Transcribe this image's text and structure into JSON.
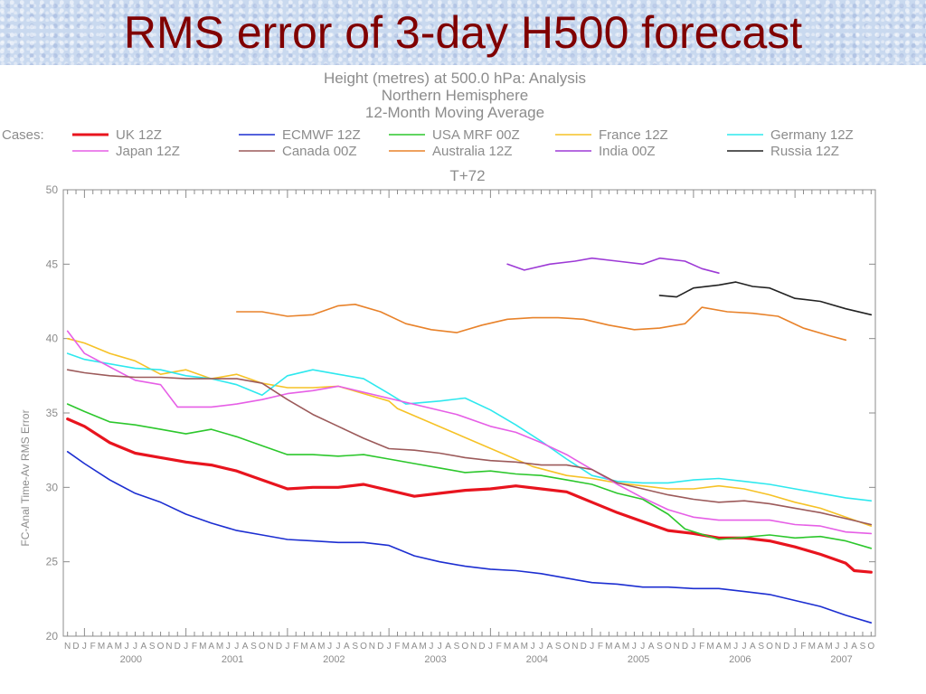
{
  "slide": {
    "title": "RMS error of 3-day H500 forecast"
  },
  "chart_data": {
    "type": "line",
    "header_lines": [
      "Height (metres) at 500.0 hPa:  Analysis",
      "Northern Hemisphere",
      "12-Month Moving Average"
    ],
    "cases_label": "Cases:",
    "subtitle": "T+72",
    "ylabel": "FC-Anal Time-Av RMS Error",
    "xlabel": "",
    "ylim": [
      20,
      50
    ],
    "yticks": [
      20,
      25,
      30,
      35,
      40,
      45,
      50
    ],
    "xlim": [
      "1999-11",
      "2007-10"
    ],
    "month_letters": "JFMAMJJASOND",
    "years": [
      "2000",
      "2001",
      "2002",
      "2003",
      "2004",
      "2005",
      "2006",
      "2007"
    ],
    "grid": false,
    "legend_position": "top",
    "series": [
      {
        "name": "UK 12Z",
        "color": "#e8141e",
        "width": 3.2,
        "points": [
          [
            "1999-11",
            34.6
          ],
          [
            "2000-01",
            34.1
          ],
          [
            "2000-04",
            33.0
          ],
          [
            "2000-07",
            32.3
          ],
          [
            "2000-10",
            32.0
          ],
          [
            "2001-01",
            31.7
          ],
          [
            "2001-04",
            31.5
          ],
          [
            "2001-07",
            31.1
          ],
          [
            "2001-10",
            30.5
          ],
          [
            "2002-01",
            29.9
          ],
          [
            "2002-04",
            30.0
          ],
          [
            "2002-07",
            30.0
          ],
          [
            "2002-10",
            30.2
          ],
          [
            "2003-01",
            29.8
          ],
          [
            "2003-04",
            29.4
          ],
          [
            "2003-07",
            29.6
          ],
          [
            "2003-10",
            29.8
          ],
          [
            "2004-01",
            29.9
          ],
          [
            "2004-04",
            30.1
          ],
          [
            "2004-07",
            29.9
          ],
          [
            "2004-10",
            29.7
          ],
          [
            "2005-01",
            29.0
          ],
          [
            "2005-04",
            28.3
          ],
          [
            "2005-07",
            27.7
          ],
          [
            "2005-10",
            27.1
          ],
          [
            "2006-01",
            26.9
          ],
          [
            "2006-04",
            26.6
          ],
          [
            "2006-07",
            26.6
          ],
          [
            "2006-10",
            26.4
          ],
          [
            "2007-01",
            26.0
          ],
          [
            "2007-04",
            25.5
          ],
          [
            "2007-07",
            24.9
          ],
          [
            "2007-08",
            24.4
          ],
          [
            "2007-10",
            24.3
          ]
        ]
      },
      {
        "name": "ECMWF 12Z",
        "color": "#1c2ed1",
        "width": 1.6,
        "points": [
          [
            "1999-11",
            32.4
          ],
          [
            "2000-01",
            31.6
          ],
          [
            "2000-04",
            30.5
          ],
          [
            "2000-07",
            29.6
          ],
          [
            "2000-10",
            29.0
          ],
          [
            "2001-01",
            28.2
          ],
          [
            "2001-04",
            27.6
          ],
          [
            "2001-07",
            27.1
          ],
          [
            "2001-10",
            26.8
          ],
          [
            "2002-01",
            26.5
          ],
          [
            "2002-04",
            26.4
          ],
          [
            "2002-07",
            26.3
          ],
          [
            "2002-10",
            26.3
          ],
          [
            "2003-01",
            26.1
          ],
          [
            "2003-04",
            25.4
          ],
          [
            "2003-07",
            25.0
          ],
          [
            "2003-10",
            24.7
          ],
          [
            "2004-01",
            24.5
          ],
          [
            "2004-04",
            24.4
          ],
          [
            "2004-07",
            24.2
          ],
          [
            "2004-10",
            23.9
          ],
          [
            "2005-01",
            23.6
          ],
          [
            "2005-04",
            23.5
          ],
          [
            "2005-07",
            23.3
          ],
          [
            "2005-10",
            23.3
          ],
          [
            "2006-01",
            23.2
          ],
          [
            "2006-04",
            23.2
          ],
          [
            "2006-07",
            23.0
          ],
          [
            "2006-10",
            22.8
          ],
          [
            "2007-01",
            22.4
          ],
          [
            "2007-04",
            22.0
          ],
          [
            "2007-07",
            21.4
          ],
          [
            "2007-10",
            20.9
          ]
        ]
      },
      {
        "name": "USA MRF 00Z",
        "color": "#2cc72c",
        "width": 1.6,
        "points": [
          [
            "1999-11",
            35.6
          ],
          [
            "2000-01",
            35.1
          ],
          [
            "2000-04",
            34.4
          ],
          [
            "2000-07",
            34.2
          ],
          [
            "2000-10",
            33.9
          ],
          [
            "2001-01",
            33.6
          ],
          [
            "2001-04",
            33.9
          ],
          [
            "2001-07",
            33.4
          ],
          [
            "2001-10",
            32.8
          ],
          [
            "2002-01",
            32.2
          ],
          [
            "2002-04",
            32.2
          ],
          [
            "2002-07",
            32.1
          ],
          [
            "2002-10",
            32.2
          ],
          [
            "2003-01",
            31.9
          ],
          [
            "2003-04",
            31.6
          ],
          [
            "2003-07",
            31.3
          ],
          [
            "2003-10",
            31.0
          ],
          [
            "2004-01",
            31.1
          ],
          [
            "2004-04",
            30.9
          ],
          [
            "2004-07",
            30.8
          ],
          [
            "2004-10",
            30.5
          ],
          [
            "2005-01",
            30.2
          ],
          [
            "2005-04",
            29.6
          ],
          [
            "2005-07",
            29.2
          ],
          [
            "2005-10",
            28.2
          ],
          [
            "2005-12",
            27.2
          ],
          [
            "2006-04",
            26.5
          ],
          [
            "2006-10",
            26.8
          ],
          [
            "2007-01",
            26.6
          ],
          [
            "2007-04",
            26.7
          ],
          [
            "2007-07",
            26.4
          ],
          [
            "2007-10",
            25.9
          ]
        ]
      },
      {
        "name": "France 12Z",
        "color": "#f6c226",
        "width": 1.6,
        "points": [
          [
            "1999-11",
            40.0
          ],
          [
            "2000-01",
            39.7
          ],
          [
            "2000-04",
            39.0
          ],
          [
            "2000-07",
            38.5
          ],
          [
            "2000-10",
            37.6
          ],
          [
            "2001-01",
            37.9
          ],
          [
            "2001-04",
            37.3
          ],
          [
            "2001-07",
            37.6
          ],
          [
            "2001-10",
            37.0
          ],
          [
            "2002-01",
            36.7
          ],
          [
            "2002-04",
            36.7
          ],
          [
            "2002-07",
            36.8
          ],
          [
            "2002-10",
            36.3
          ],
          [
            "2003-01",
            35.8
          ],
          [
            "2003-02",
            35.3
          ],
          [
            "2004-06",
            31.4
          ],
          [
            "2004-10",
            30.8
          ],
          [
            "2005-01",
            30.6
          ],
          [
            "2005-04",
            30.3
          ],
          [
            "2005-07",
            30.1
          ],
          [
            "2005-10",
            29.9
          ],
          [
            "2006-01",
            29.9
          ],
          [
            "2006-04",
            30.1
          ],
          [
            "2006-07",
            29.9
          ],
          [
            "2006-10",
            29.5
          ],
          [
            "2007-01",
            29.0
          ],
          [
            "2007-04",
            28.6
          ],
          [
            "2007-07",
            28.0
          ],
          [
            "2007-10",
            27.4
          ]
        ]
      },
      {
        "name": "Germany 12Z",
        "color": "#2ee8ee",
        "width": 1.6,
        "points": [
          [
            "1999-11",
            39.0
          ],
          [
            "2000-01",
            38.6
          ],
          [
            "2000-04",
            38.3
          ],
          [
            "2000-07",
            38.0
          ],
          [
            "2000-10",
            37.9
          ],
          [
            "2001-01",
            37.5
          ],
          [
            "2001-04",
            37.3
          ],
          [
            "2001-07",
            36.9
          ],
          [
            "2001-10",
            36.2
          ],
          [
            "2002-01",
            37.5
          ],
          [
            "2002-04",
            37.9
          ],
          [
            "2002-07",
            37.6
          ],
          [
            "2002-10",
            37.3
          ],
          [
            "2003-01",
            36.3
          ],
          [
            "2003-03",
            35.6
          ],
          [
            "2003-07",
            35.8
          ],
          [
            "2003-10",
            36.0
          ],
          [
            "2004-01",
            35.2
          ],
          [
            "2004-04",
            34.2
          ],
          [
            "2004-07",
            33.1
          ],
          [
            "2004-10",
            31.9
          ],
          [
            "2005-01",
            30.8
          ],
          [
            "2005-04",
            30.4
          ],
          [
            "2005-07",
            30.3
          ],
          [
            "2005-10",
            30.3
          ],
          [
            "2006-01",
            30.5
          ],
          [
            "2006-04",
            30.6
          ],
          [
            "2006-07",
            30.4
          ],
          [
            "2006-10",
            30.2
          ],
          [
            "2007-01",
            29.9
          ],
          [
            "2007-04",
            29.6
          ],
          [
            "2007-07",
            29.3
          ],
          [
            "2007-10",
            29.1
          ]
        ]
      },
      {
        "name": "Japan 12Z",
        "color": "#e65fe6",
        "width": 1.6,
        "points": [
          [
            "1999-11",
            40.5
          ],
          [
            "2000-01",
            39.0
          ],
          [
            "2000-04",
            38.1
          ],
          [
            "2000-07",
            37.2
          ],
          [
            "2000-10",
            36.9
          ],
          [
            "2000-12",
            35.4
          ],
          [
            "2001-04",
            35.4
          ],
          [
            "2001-07",
            35.6
          ],
          [
            "2001-10",
            35.9
          ],
          [
            "2002-01",
            36.3
          ],
          [
            "2002-04",
            36.5
          ],
          [
            "2002-07",
            36.8
          ],
          [
            "2003-09",
            34.9
          ],
          [
            "2004-01",
            34.1
          ],
          [
            "2004-04",
            33.7
          ],
          [
            "2004-07",
            33.0
          ],
          [
            "2004-10",
            32.2
          ],
          [
            "2005-01",
            31.2
          ],
          [
            "2005-04",
            30.2
          ],
          [
            "2005-07",
            29.3
          ],
          [
            "2005-10",
            28.5
          ],
          [
            "2006-01",
            28.0
          ],
          [
            "2006-04",
            27.8
          ],
          [
            "2006-07",
            27.8
          ],
          [
            "2006-10",
            27.8
          ],
          [
            "2007-01",
            27.5
          ],
          [
            "2007-04",
            27.4
          ],
          [
            "2007-07",
            27.0
          ],
          [
            "2007-10",
            26.9
          ]
        ]
      },
      {
        "name": "Canada 00Z",
        "color": "#9c5a5a",
        "width": 1.6,
        "points": [
          [
            "1999-11",
            37.9
          ],
          [
            "2000-01",
            37.7
          ],
          [
            "2000-04",
            37.5
          ],
          [
            "2000-07",
            37.4
          ],
          [
            "2000-10",
            37.4
          ],
          [
            "2001-01",
            37.3
          ],
          [
            "2001-04",
            37.3
          ],
          [
            "2001-07",
            37.3
          ],
          [
            "2001-10",
            37.0
          ],
          [
            "2002-01",
            35.9
          ],
          [
            "2002-04",
            34.9
          ],
          [
            "2002-07",
            34.1
          ],
          [
            "2002-10",
            33.3
          ],
          [
            "2003-01",
            32.6
          ],
          [
            "2003-04",
            32.5
          ],
          [
            "2003-07",
            32.3
          ],
          [
            "2003-10",
            32.0
          ],
          [
            "2004-01",
            31.8
          ],
          [
            "2004-04",
            31.7
          ],
          [
            "2004-07",
            31.5
          ],
          [
            "2004-10",
            31.5
          ],
          [
            "2005-01",
            31.2
          ],
          [
            "2005-04",
            30.3
          ],
          [
            "2005-07",
            29.9
          ],
          [
            "2005-10",
            29.5
          ],
          [
            "2006-01",
            29.2
          ],
          [
            "2006-04",
            29.0
          ],
          [
            "2006-07",
            29.1
          ],
          [
            "2006-10",
            28.9
          ],
          [
            "2007-01",
            28.6
          ],
          [
            "2007-04",
            28.3
          ],
          [
            "2007-07",
            27.9
          ],
          [
            "2007-10",
            27.5
          ]
        ]
      },
      {
        "name": "Australia 12Z",
        "color": "#e8822a",
        "width": 1.6,
        "points": [
          [
            "2001-07",
            41.8
          ],
          [
            "2001-10",
            41.8
          ],
          [
            "2002-01",
            41.5
          ],
          [
            "2002-04",
            41.6
          ],
          [
            "2002-07",
            42.2
          ],
          [
            "2002-09",
            42.3
          ],
          [
            "2002-12",
            41.8
          ],
          [
            "2003-03",
            41.0
          ],
          [
            "2003-06",
            40.6
          ],
          [
            "2003-09",
            40.4
          ],
          [
            "2003-12",
            40.9
          ],
          [
            "2004-03",
            41.3
          ],
          [
            "2004-06",
            41.4
          ],
          [
            "2004-09",
            41.4
          ],
          [
            "2004-12",
            41.3
          ],
          [
            "2005-03",
            40.9
          ],
          [
            "2005-06",
            40.6
          ],
          [
            "2005-09",
            40.7
          ],
          [
            "2005-12",
            41.0
          ],
          [
            "2006-02",
            42.1
          ],
          [
            "2006-05",
            41.8
          ],
          [
            "2006-08",
            41.7
          ],
          [
            "2006-11",
            41.5
          ],
          [
            "2007-02",
            40.7
          ],
          [
            "2007-05",
            40.2
          ],
          [
            "2007-07",
            39.9
          ]
        ]
      },
      {
        "name": "India 00Z",
        "color": "#9d3ad6",
        "width": 1.6,
        "points": [
          [
            "2004-03",
            45.0
          ],
          [
            "2004-05",
            44.6
          ],
          [
            "2004-08",
            45.0
          ],
          [
            "2004-11",
            45.2
          ],
          [
            "2005-01",
            45.4
          ],
          [
            "2005-04",
            45.2
          ],
          [
            "2005-07",
            45.0
          ],
          [
            "2005-09",
            45.4
          ],
          [
            "2005-12",
            45.2
          ],
          [
            "2006-02",
            44.7
          ],
          [
            "2006-04",
            44.4
          ]
        ]
      },
      {
        "name": "Russia 12Z",
        "color": "#222222",
        "width": 1.6,
        "points": [
          [
            "2005-09",
            42.9
          ],
          [
            "2005-11",
            42.8
          ],
          [
            "2006-01",
            43.4
          ],
          [
            "2006-04",
            43.6
          ],
          [
            "2006-06",
            43.8
          ],
          [
            "2006-08",
            43.5
          ],
          [
            "2006-10",
            43.4
          ],
          [
            "2007-01",
            42.7
          ],
          [
            "2007-04",
            42.5
          ],
          [
            "2007-07",
            42.0
          ],
          [
            "2007-10",
            41.6
          ]
        ]
      }
    ]
  }
}
